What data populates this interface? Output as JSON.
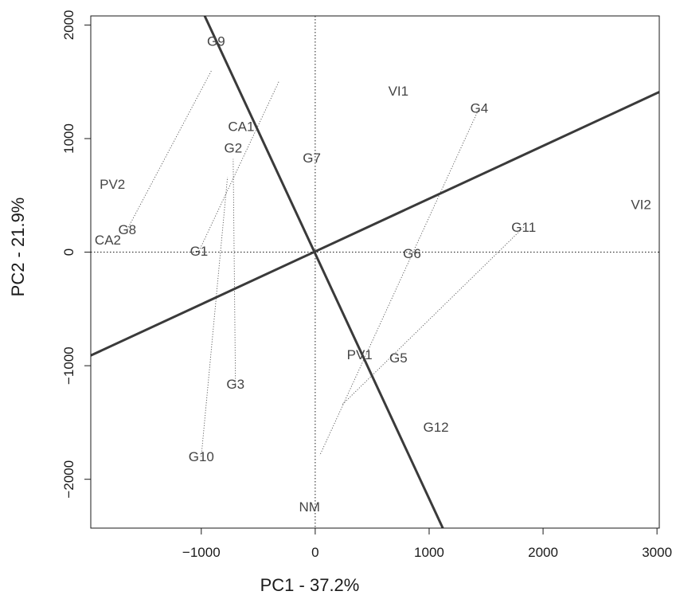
{
  "chart_data": {
    "type": "scatter",
    "title": "",
    "xlabel": "PC1 - 37.2%",
    "ylabel": "PC2 - 21.9%",
    "xlim": [
      -1970,
      3020
    ],
    "ylim": [
      -2430,
      2080
    ],
    "x_ticks": [
      {
        "value": -1000,
        "label": "−1000"
      },
      {
        "value": 0,
        "label": "0"
      },
      {
        "value": 1000,
        "label": "1000"
      },
      {
        "value": 2000,
        "label": "2000"
      },
      {
        "value": 3000,
        "label": "3000"
      }
    ],
    "y_ticks": [
      {
        "value": -2000,
        "label": "−2000"
      },
      {
        "value": -1000,
        "label": "−1000"
      },
      {
        "value": 0,
        "label": "0"
      },
      {
        "value": 1000,
        "label": "1000"
      },
      {
        "value": 2000,
        "label": "2000"
      }
    ],
    "grid": false,
    "reference_lines": {
      "x": 0,
      "y": 0,
      "style": "dotted"
    },
    "genotypes": [
      {
        "label": "G1",
        "x": -1020,
        "y": 10
      },
      {
        "label": "G2",
        "x": -720,
        "y": 920
      },
      {
        "label": "G3",
        "x": -700,
        "y": -1160
      },
      {
        "label": "G4",
        "x": 1440,
        "y": 1270
      },
      {
        "label": "G5",
        "x": 730,
        "y": -930
      },
      {
        "label": "G6",
        "x": 850,
        "y": -10
      },
      {
        "label": "G7",
        "x": -30,
        "y": 830
      },
      {
        "label": "G8",
        "x": -1650,
        "y": 200
      },
      {
        "label": "G9",
        "x": -870,
        "y": 1860
      },
      {
        "label": "G10",
        "x": -1000,
        "y": -1800
      },
      {
        "label": "G11",
        "x": 1830,
        "y": 220
      },
      {
        "label": "G12",
        "x": 1060,
        "y": -1540
      }
    ],
    "environments": [
      {
        "label": "VI1",
        "x": 730,
        "y": 1420
      },
      {
        "label": "CA1",
        "x": -650,
        "y": 1110
      },
      {
        "label": "PV2",
        "x": -1780,
        "y": 600
      },
      {
        "label": "VI2",
        "x": 2860,
        "y": 420
      },
      {
        "label": "CA2",
        "x": -1820,
        "y": 110
      },
      {
        "label": "PV1",
        "x": 390,
        "y": -900
      },
      {
        "label": "NM",
        "x": -50,
        "y": -2240
      }
    ],
    "lines": [
      {
        "name": "line-positive-slope",
        "from": [
          -1970,
          -910
        ],
        "to": [
          3020,
          1410
        ]
      },
      {
        "name": "line-negative-slope",
        "from": [
          -970,
          2080
        ],
        "to": [
          1120,
          -2430
        ]
      }
    ],
    "projections": [
      {
        "from": [
          -1650,
          200
        ],
        "to": [
          -910,
          1600
        ]
      },
      {
        "from": [
          -1020,
          10
        ],
        "to": [
          -320,
          1500
        ]
      },
      {
        "from": [
          1440,
          1270
        ],
        "to": [
          40,
          -1790
        ]
      },
      {
        "from": [
          1830,
          220
        ],
        "to": [
          240,
          -1340
        ]
      },
      {
        "from": [
          -700,
          -1160
        ],
        "to": [
          -720,
          820
        ]
      },
      {
        "from": [
          -1000,
          -1800
        ],
        "to": [
          -770,
          660
        ]
      }
    ],
    "colors": {
      "biplot_line": "#3a3a3a",
      "point_label": "#444444",
      "axis": "#1a1a1a",
      "projection": "#555555"
    }
  }
}
